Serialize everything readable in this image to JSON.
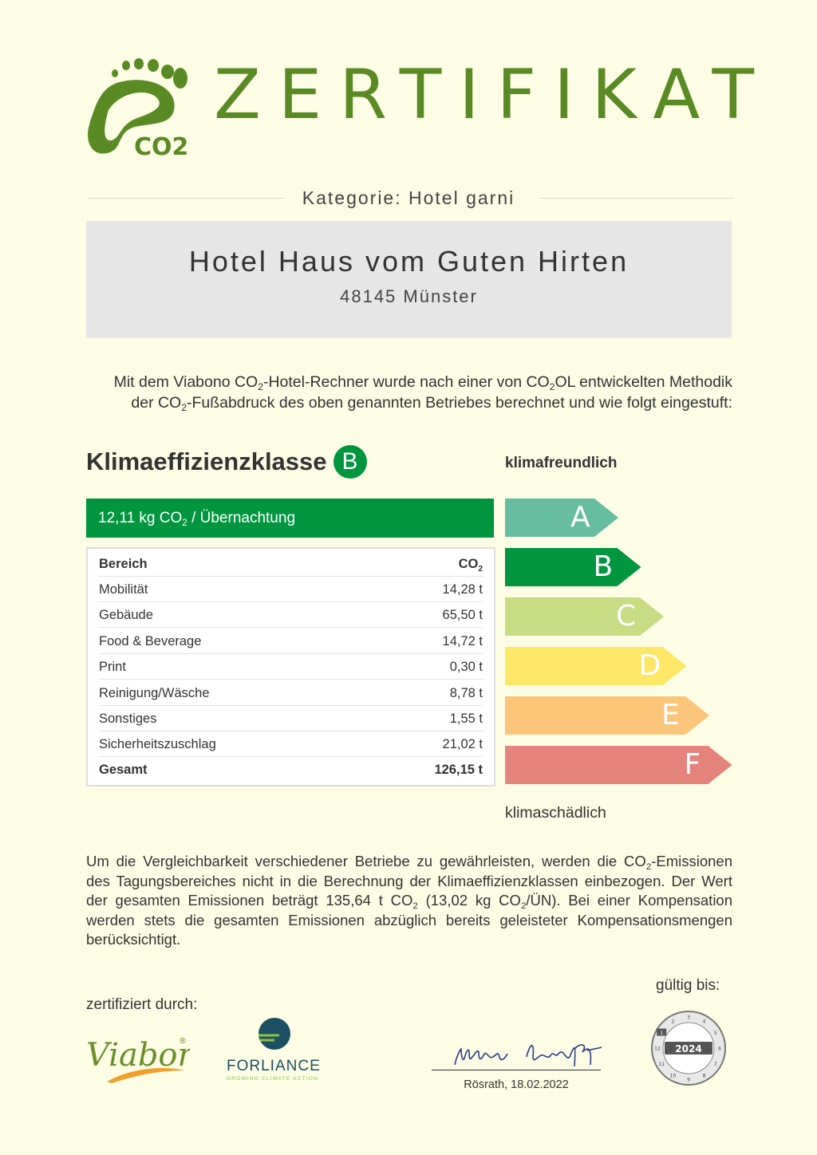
{
  "header": {
    "title": "ZERTIFIKAT",
    "logo_label": "CO2",
    "logo_icon": "footprint-icon",
    "category": "Kategorie: Hotel garni"
  },
  "hotel": {
    "name": "Hotel Haus vom Guten Hirten",
    "location": "48145 Münster"
  },
  "intro": {
    "p1": "Mit dem Viabono CO",
    "s1": "2",
    "p2": "-Hotel-Rechner wurde nach einer von CO",
    "s2": "2",
    "p3": "OL entwickelten Methodik",
    "p4": "der CO",
    "s3": "2",
    "p5": "-Fußabdruck des oben genannten Betriebes berechnet und wie folgt eingestuft:"
  },
  "classification": {
    "heading": "Klimaeffizienzklasse",
    "class": "B",
    "value_pre": "12,11 kg CO",
    "value_sub": "2",
    "value_post": " / Übernachtung",
    "label_top": "klimafreundlich",
    "label_bottom": "klimaschädlich"
  },
  "table": {
    "header_area": "Bereich",
    "header_co2": "CO",
    "header_co2_sub": "2",
    "rows": [
      {
        "area": "Mobilität",
        "value": "14,28 t"
      },
      {
        "area": "Gebäude",
        "value": "65,50 t"
      },
      {
        "area": "Food & Beverage",
        "value": "14,72 t"
      },
      {
        "area": "Print",
        "value": "0,30 t"
      },
      {
        "area": "Reinigung/Wäsche",
        "value": "8,78 t"
      },
      {
        "area": "Sonstiges",
        "value": "1,55 t"
      },
      {
        "area": "Sicherheitszuschlag",
        "value": "21,02 t"
      }
    ],
    "total_label": "Gesamt",
    "total_value": "126,15 t"
  },
  "scale": [
    {
      "letter": "A",
      "color": "#66bda0"
    },
    {
      "letter": "B",
      "color": "#00963f"
    },
    {
      "letter": "C",
      "color": "#c8dc84"
    },
    {
      "letter": "D",
      "color": "#fde767"
    },
    {
      "letter": "E",
      "color": "#fbc57a"
    },
    {
      "letter": "F",
      "color": "#e5847d"
    }
  ],
  "footnote": {
    "t1": "Um die Vergleichbarkeit verschiedener Betriebe zu gewährleisten, werden die CO",
    "s1": "2",
    "t2": "-Emissionen des Tagungsbereiches nicht in die Berechnung der Klimaeffizienzklassen einbezogen. Der Wert der ge­samten Emissionen beträgt 135,64 t CO",
    "s2": "2",
    "t3": " (13,02 kg CO",
    "s3": "2",
    "t4": "/ÜN). Bei einer Kompensation werden stets die gesamten Emissionen abzüglich bereits geleisteter Kompensationsmengen berücksichtigt."
  },
  "footer": {
    "certified_by": "zertifiziert durch:",
    "viabono_logo": "Viabono",
    "viabono_reg": "®",
    "forliance_logo": "FORLIANCE",
    "forliance_tagline": "GROWING CLIMATE ACTION",
    "signature_date": "Rösrath, 18.02.2022",
    "valid_until": "gültig bis:",
    "seal_year": "2024",
    "seal_months": [
      "1",
      "2",
      "3",
      "4",
      "5",
      "6",
      "7",
      "8",
      "9",
      "10",
      "11",
      "12"
    ]
  }
}
